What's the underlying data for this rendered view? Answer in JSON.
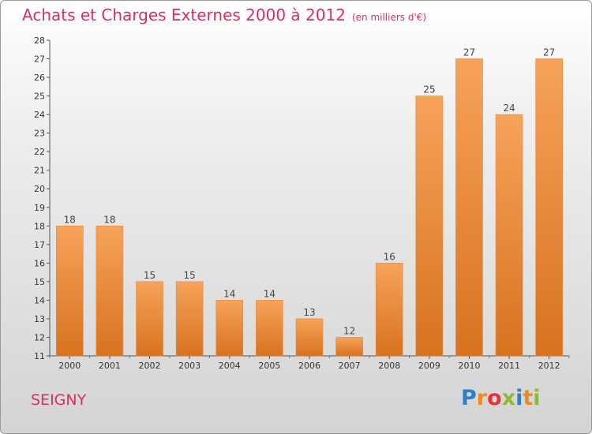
{
  "title": "Achats et Charges Externes 2000 à 2012",
  "unit": "(en milliers d'€)",
  "place": "SEIGNY",
  "brand": {
    "name": "Proxiti",
    "letters": [
      "P",
      "r",
      "o",
      "x",
      "i",
      "t",
      "i"
    ],
    "colors": [
      "#2c7fc9",
      "#f08a1c",
      "#e8313b",
      "#8dbb2d",
      "#2c7fc9",
      "#f08a1c",
      "#8dbb2d"
    ]
  },
  "colors": {
    "bar_light": "#f7a35a",
    "bar_dark": "#d8721e",
    "title": "#d83060"
  },
  "chart_data": {
    "type": "bar",
    "title": "Achats et Charges Externes 2000 à 2012",
    "categories": [
      "2000",
      "2001",
      "2002",
      "2003",
      "2004",
      "2005",
      "2006",
      "2007",
      "2008",
      "2009",
      "2010",
      "2011",
      "2012"
    ],
    "values": [
      18,
      18,
      15,
      15,
      14,
      14,
      13,
      12,
      16,
      25,
      27,
      24,
      27
    ],
    "ylim": [
      11,
      28
    ],
    "yticks": [
      "11",
      "12",
      "13",
      "14",
      "15",
      "16",
      "17",
      "18",
      "19",
      "20",
      "21",
      "22",
      "23",
      "24",
      "25",
      "26",
      "27",
      "28"
    ],
    "xlabel": "",
    "ylabel": "",
    "grid": false,
    "legend": "none"
  }
}
